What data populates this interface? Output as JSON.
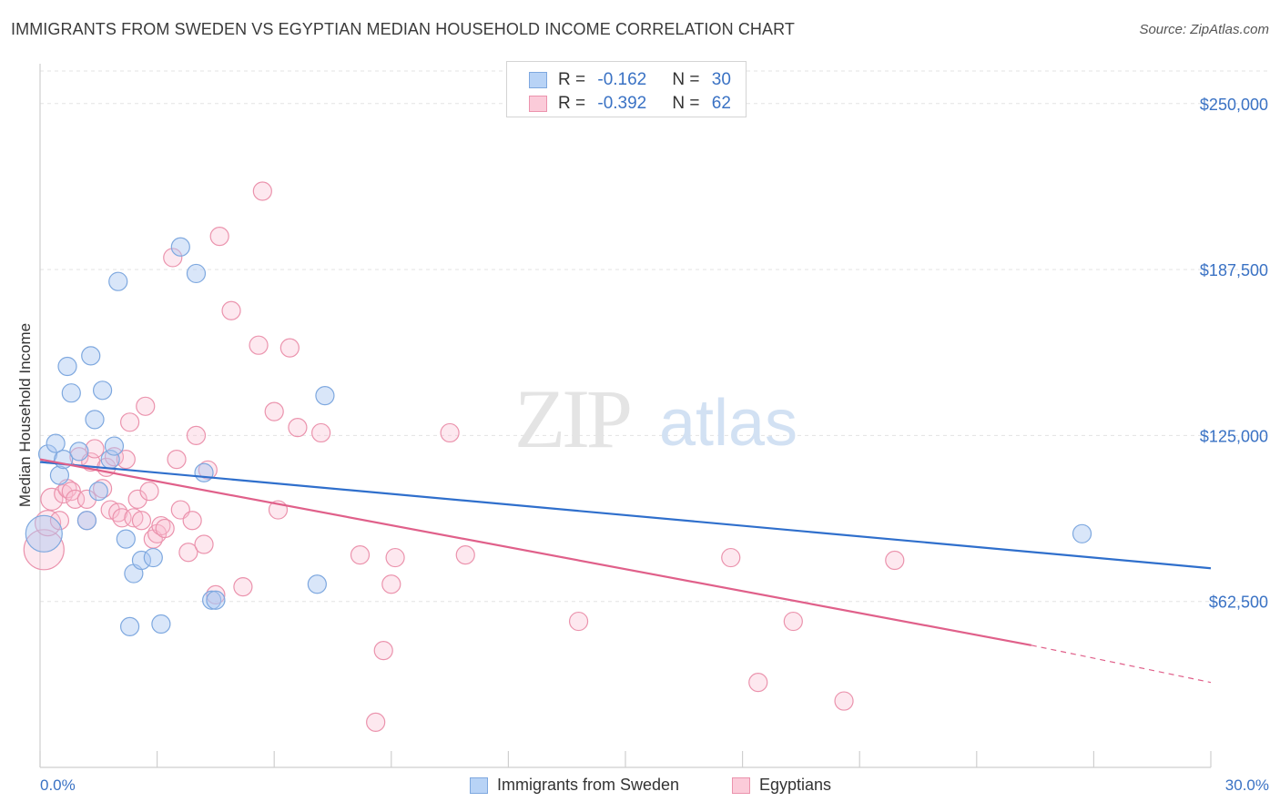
{
  "title": "IMMIGRANTS FROM SWEDEN VS EGYPTIAN MEDIAN HOUSEHOLD INCOME CORRELATION CHART",
  "source": "Source: ZipAtlas.com",
  "watermark": {
    "zip": "ZIP",
    "atlas": "atlas"
  },
  "legend": {
    "r_label": "R = ",
    "n_label": "N = ",
    "rows": [
      {
        "r": "-0.162",
        "n": "30"
      },
      {
        "r": "-0.392",
        "n": "62"
      }
    ]
  },
  "colors": {
    "sweden": "#7ea8df",
    "sweden_line": "#2f6fcc",
    "egyptians": "#eb93ad",
    "egyptians_line": "#e0608a",
    "axis_text": "#3a72c4"
  },
  "chart_data": {
    "type": "scatter",
    "xlabel": "",
    "ylabel": "Median Household Income",
    "xlim": [
      0,
      30
    ],
    "ylim": [
      0,
      265000
    ],
    "x_tick_labels": [
      "0.0%",
      "30.0%"
    ],
    "y_ticks": [
      62500,
      125000,
      187500,
      250000
    ],
    "y_tick_labels": [
      "$62,500",
      "$125,000",
      "$187,500",
      "$250,000"
    ],
    "grid": true,
    "series": [
      {
        "name": "Immigrants from Sweden",
        "points": [
          [
            0.1,
            88000,
            20
          ],
          [
            0.2,
            118000,
            10
          ],
          [
            0.4,
            122000,
            10
          ],
          [
            0.5,
            110000,
            10
          ],
          [
            0.6,
            116000,
            10
          ],
          [
            0.7,
            151000,
            10
          ],
          [
            0.8,
            141000,
            10
          ],
          [
            1.0,
            119000,
            10
          ],
          [
            1.2,
            93000,
            10
          ],
          [
            1.3,
            155000,
            10
          ],
          [
            1.4,
            131000,
            10
          ],
          [
            1.5,
            104000,
            10
          ],
          [
            1.6,
            142000,
            10
          ],
          [
            1.8,
            116000,
            10
          ],
          [
            1.9,
            121000,
            10
          ],
          [
            2.0,
            183000,
            10
          ],
          [
            2.2,
            86000,
            10
          ],
          [
            2.3,
            53000,
            10
          ],
          [
            2.4,
            73000,
            10
          ],
          [
            2.6,
            78000,
            10
          ],
          [
            2.9,
            79000,
            10
          ],
          [
            3.1,
            54000,
            10
          ],
          [
            3.6,
            196000,
            10
          ],
          [
            4.0,
            186000,
            10
          ],
          [
            4.2,
            111000,
            10
          ],
          [
            4.4,
            63000,
            10
          ],
          [
            4.5,
            63000,
            10
          ],
          [
            7.1,
            69000,
            10
          ],
          [
            7.3,
            140000,
            10
          ],
          [
            26.7,
            88000,
            10
          ]
        ],
        "trend": {
          "x": [
            0,
            30
          ],
          "y": [
            115000,
            75000
          ]
        }
      },
      {
        "name": "Egyptians",
        "points": [
          [
            0.1,
            82000,
            22
          ],
          [
            0.2,
            92000,
            14
          ],
          [
            0.3,
            101000,
            12
          ],
          [
            0.5,
            93000,
            10
          ],
          [
            0.6,
            103000,
            10
          ],
          [
            0.7,
            105000,
            10
          ],
          [
            0.8,
            104000,
            10
          ],
          [
            0.9,
            101000,
            10
          ],
          [
            1.0,
            117000,
            10
          ],
          [
            1.2,
            93000,
            10
          ],
          [
            1.2,
            101000,
            10
          ],
          [
            1.3,
            115000,
            10
          ],
          [
            1.4,
            120000,
            10
          ],
          [
            1.6,
            105000,
            10
          ],
          [
            1.7,
            113000,
            10
          ],
          [
            1.8,
            97000,
            10
          ],
          [
            1.9,
            117000,
            10
          ],
          [
            2.0,
            96000,
            10
          ],
          [
            2.1,
            94000,
            10
          ],
          [
            2.2,
            116000,
            10
          ],
          [
            2.3,
            130000,
            10
          ],
          [
            2.4,
            94000,
            10
          ],
          [
            2.5,
            101000,
            10
          ],
          [
            2.6,
            93000,
            10
          ],
          [
            2.7,
            136000,
            10
          ],
          [
            2.8,
            104000,
            10
          ],
          [
            2.9,
            86000,
            10
          ],
          [
            3.0,
            88000,
            10
          ],
          [
            3.1,
            91000,
            10
          ],
          [
            3.2,
            90000,
            10
          ],
          [
            3.4,
            192000,
            10
          ],
          [
            3.5,
            116000,
            10
          ],
          [
            3.6,
            97000,
            10
          ],
          [
            3.8,
            81000,
            10
          ],
          [
            3.9,
            93000,
            10
          ],
          [
            4.0,
            125000,
            10
          ],
          [
            4.2,
            84000,
            10
          ],
          [
            4.3,
            112000,
            10
          ],
          [
            4.5,
            65000,
            10
          ],
          [
            4.6,
            200000,
            10
          ],
          [
            4.9,
            172000,
            10
          ],
          [
            5.2,
            68000,
            10
          ],
          [
            5.6,
            159000,
            10
          ],
          [
            5.7,
            217000,
            10
          ],
          [
            6.0,
            134000,
            10
          ],
          [
            6.1,
            97000,
            10
          ],
          [
            6.4,
            158000,
            10
          ],
          [
            6.6,
            128000,
            10
          ],
          [
            7.2,
            126000,
            10
          ],
          [
            8.2,
            80000,
            10
          ],
          [
            8.6,
            17000,
            10
          ],
          [
            8.8,
            44000,
            10
          ],
          [
            9.0,
            69000,
            10
          ],
          [
            9.1,
            79000,
            10
          ],
          [
            10.5,
            126000,
            10
          ],
          [
            10.9,
            80000,
            10
          ],
          [
            13.8,
            55000,
            10
          ],
          [
            17.7,
            79000,
            10
          ],
          [
            18.4,
            32000,
            10
          ],
          [
            19.3,
            55000,
            10
          ],
          [
            20.6,
            25000,
            10
          ],
          [
            21.9,
            78000,
            10
          ]
        ],
        "trend": {
          "x": [
            0,
            25.4
          ],
          "y": [
            116000,
            46000
          ]
        },
        "trend_dashed": {
          "x": [
            25.4,
            30
          ],
          "y": [
            46000,
            32000
          ]
        }
      }
    ]
  }
}
